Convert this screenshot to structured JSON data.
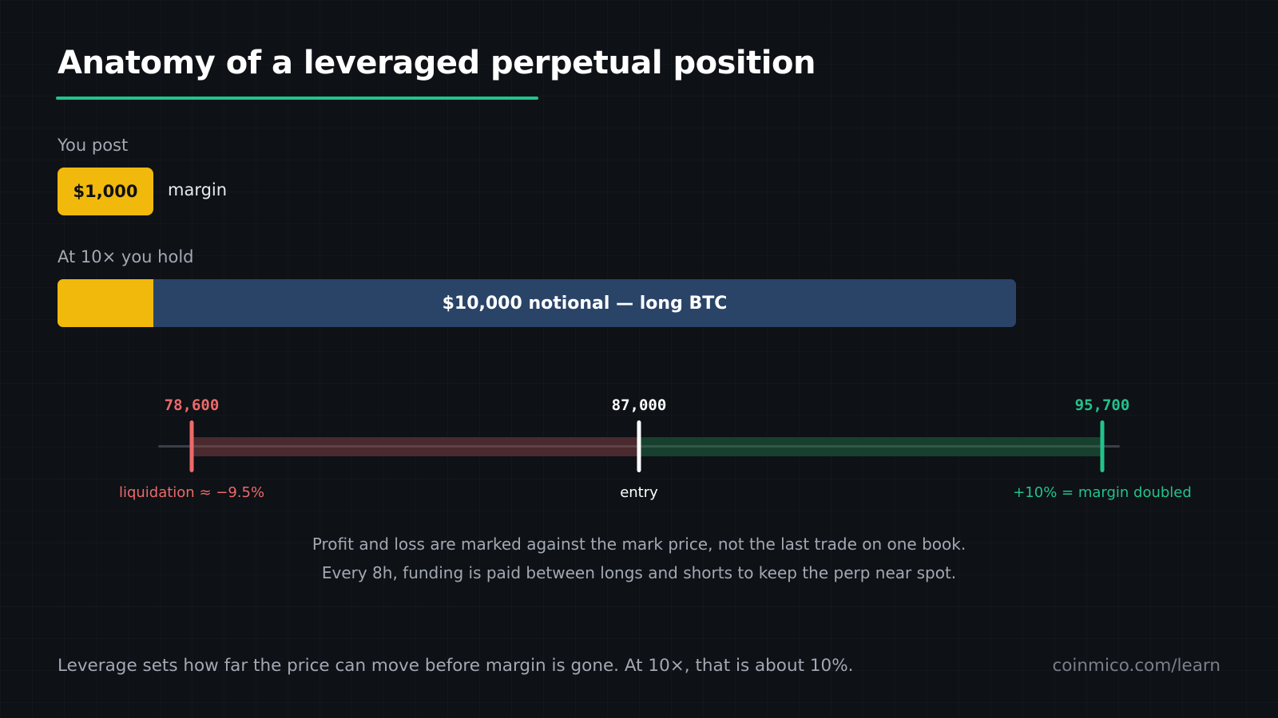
{
  "title": "Anatomy of a leveraged perpetual position",
  "colors": {
    "accent_green": "#22c38b",
    "margin_yellow": "#f0b90b",
    "notional_blue": "#2a4468",
    "loss_red": "#ec6a6a",
    "loss_zone": "#4a2a2e",
    "profit_zone": "#17402f",
    "entry_white": "#ffffff",
    "track_gray": "#3a3f48"
  },
  "margin_section": {
    "label": "You post",
    "amount": "$1,000",
    "word": "margin"
  },
  "leverage_section": {
    "label": "At 10× you hold",
    "notional_text": "$10,000 notional — long BTC",
    "margin_fraction": 0.1
  },
  "price_levels": {
    "liquidation": {
      "price": 78600,
      "value_label": "78,600",
      "caption": "liquidation ≈ −9.5%"
    },
    "entry": {
      "price": 87000,
      "value_label": "87,000",
      "caption": "entry"
    },
    "target": {
      "price": 95700,
      "value_label": "95,700",
      "caption": "+10% = margin doubled"
    }
  },
  "notes": [
    "Profit and loss are marked against the mark price, not the last trade on one book.",
    "Every 8h, funding is paid between longs and shorts to keep the perp near spot."
  ],
  "footer": {
    "text": "Leverage sets how far the price can move before margin is gone. At 10×, that is about 10%.",
    "url": "coinmico.com/learn"
  }
}
